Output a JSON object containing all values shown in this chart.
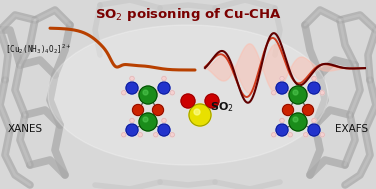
{
  "title": "SO$_2$ poisoning of Cu-CHA",
  "title_color": "#7a0000",
  "title_fontsize": 9.5,
  "bg_color": "#d8d8d8",
  "label_xanes": "XANES",
  "label_exafs": "EXAFS",
  "label_complex": "[Cu$_2$(NH$_3$)$_4$O$_2$]$^{2+}$",
  "label_so2": "SO$_2$",
  "xanes_color": "#b84000",
  "exafs_dark_color": "#600000",
  "exafs_mid_color": "#cc2200",
  "exafs_light_color": "#ffbbaa",
  "so2_s_color": "#e8e000",
  "so2_o_color": "#cc0000",
  "cu_color": "#1a8c1a",
  "o_bridge_color": "#cc2200",
  "n_color": "#2233cc",
  "h_color": "#f5d0d0",
  "text_color": "#111111",
  "framework_color": "#aaaaaa",
  "framework_dark": "#888888"
}
